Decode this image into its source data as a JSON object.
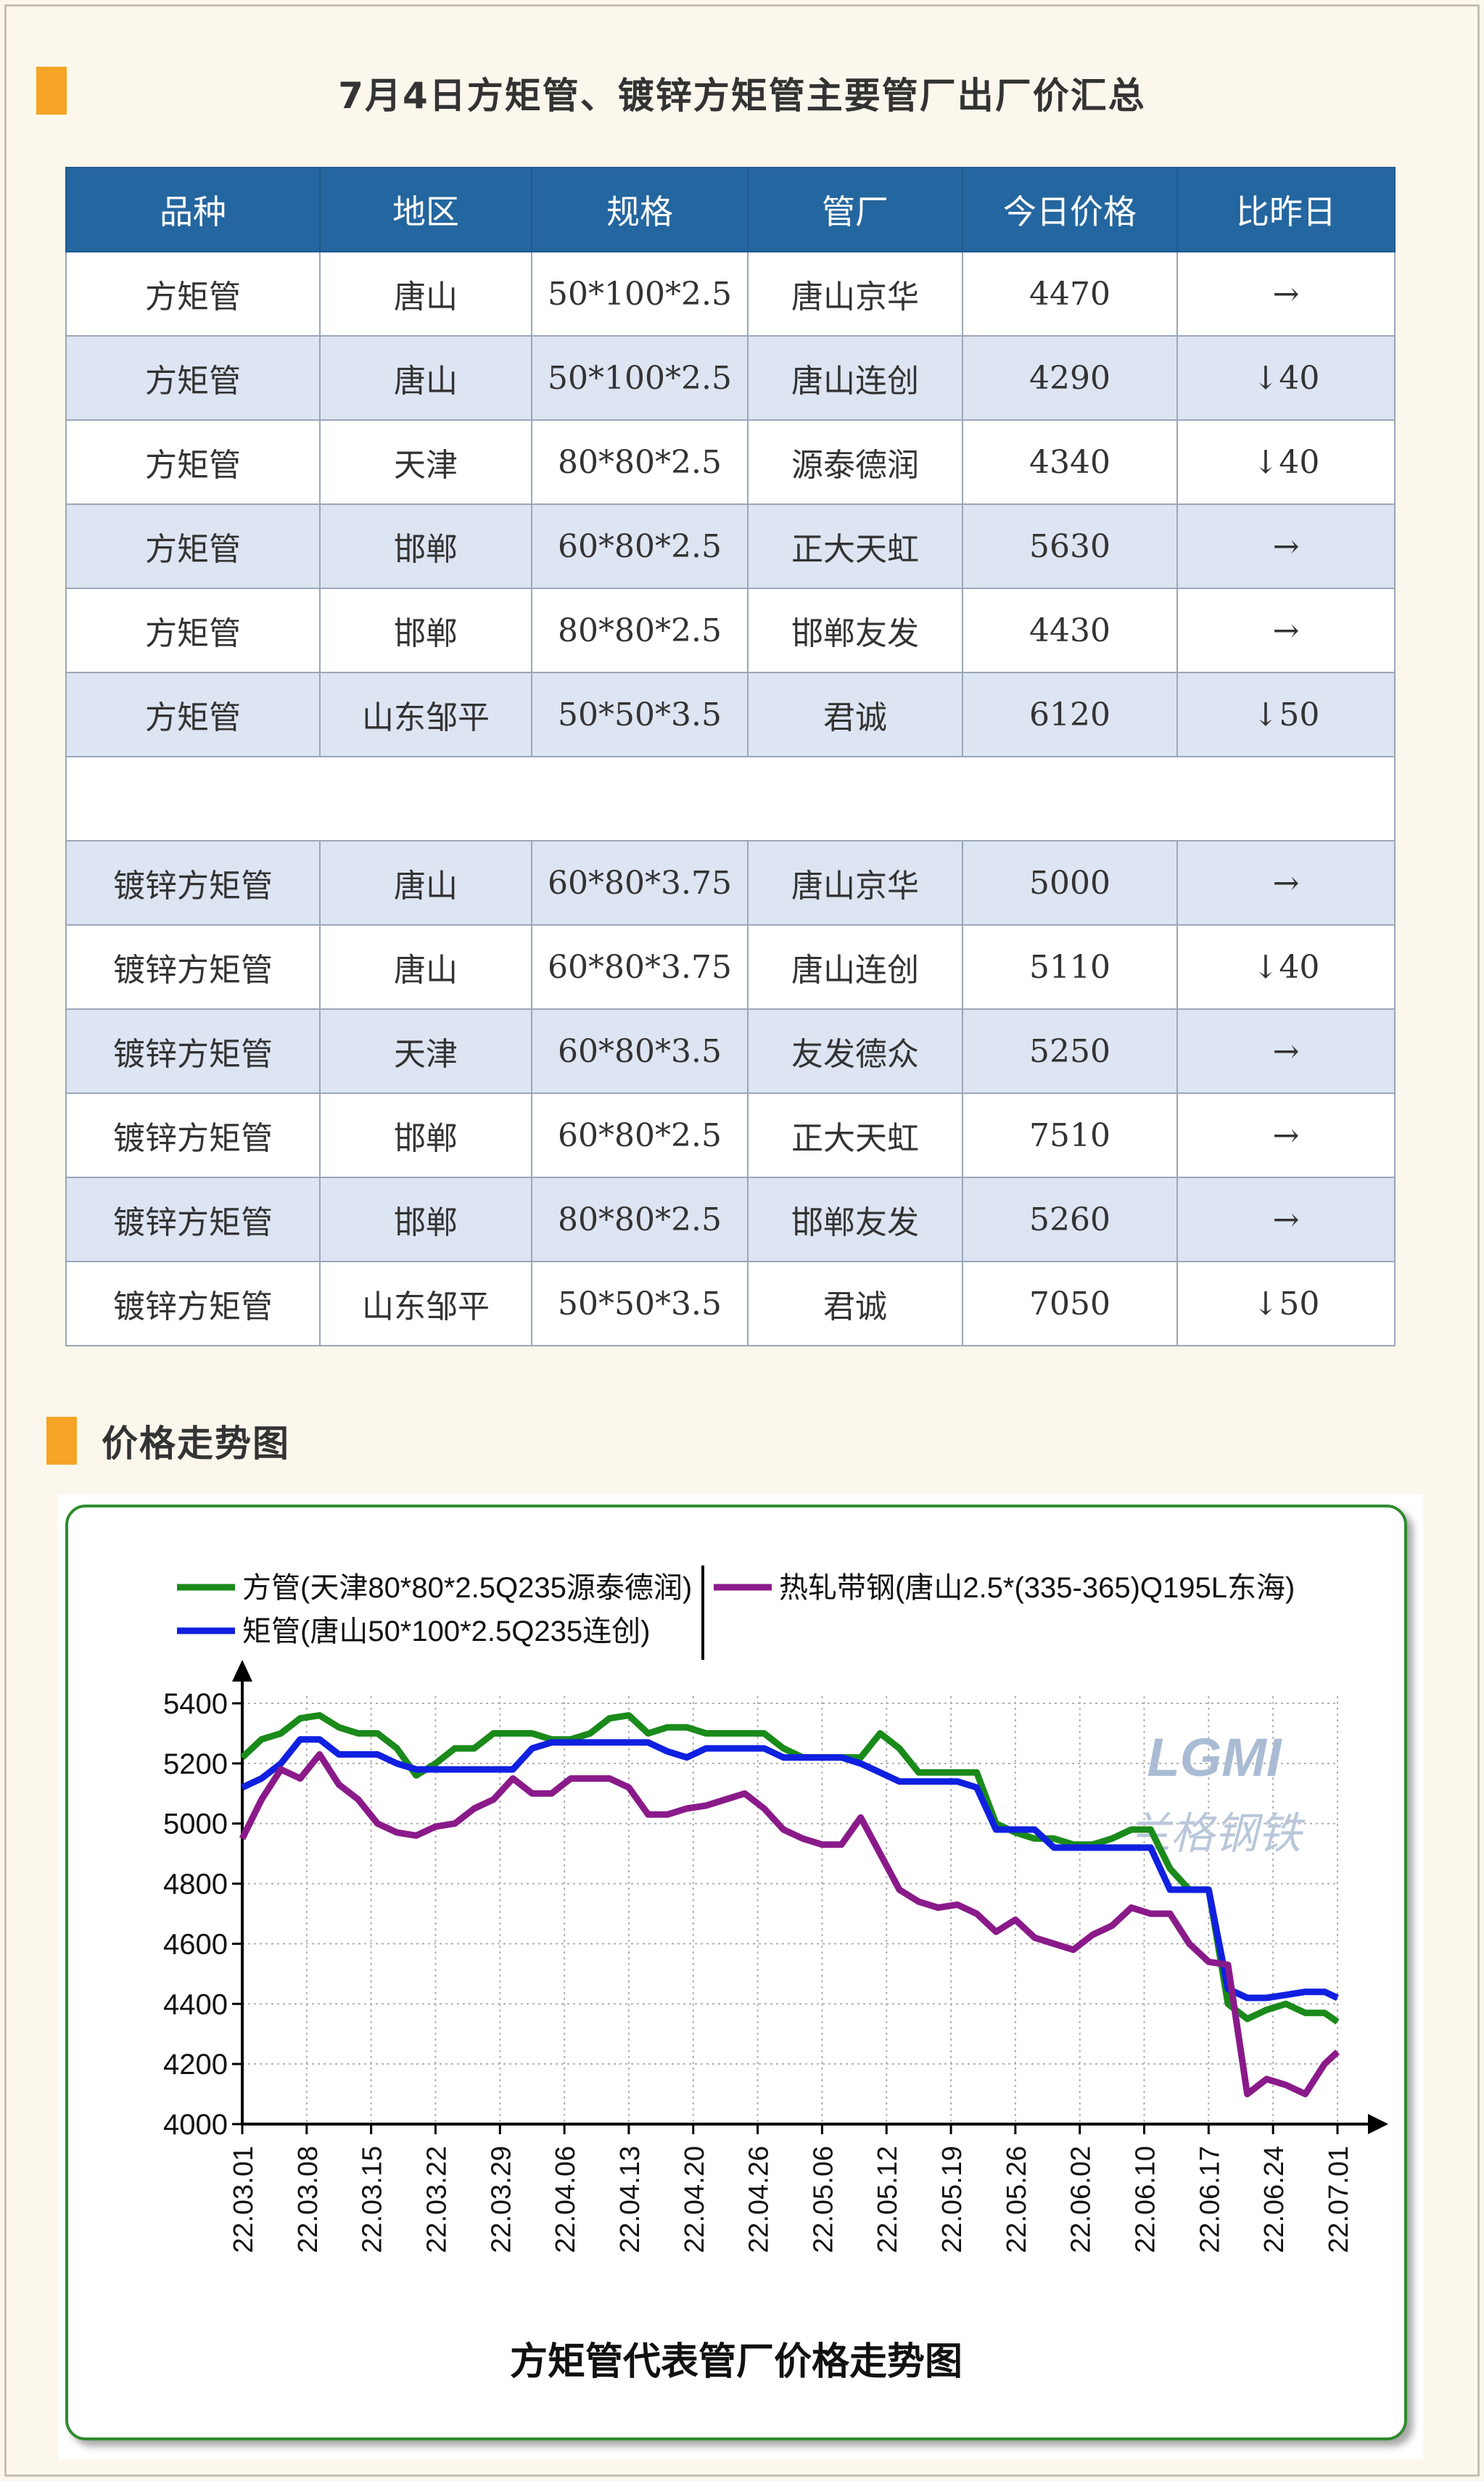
{
  "table": {
    "title": "7月4日方矩管、镀锌方矩管主要管厂出厂价汇总",
    "headers": [
      "品种",
      "地区",
      "规格",
      "管厂",
      "今日价格",
      "比昨日"
    ],
    "rows_group1": [
      {
        "variety": "方矩管",
        "region": "唐山",
        "spec": "50*100*2.5",
        "mill": "唐山京华",
        "price": "4470",
        "change": "→",
        "trend": "flat"
      },
      {
        "variety": "方矩管",
        "region": "唐山",
        "spec": "50*100*2.5",
        "mill": "唐山连创",
        "price": "4290",
        "change": "↓40",
        "trend": "down"
      },
      {
        "variety": "方矩管",
        "region": "天津",
        "spec": "80*80*2.5",
        "mill": "源泰德润",
        "price": "4340",
        "change": "↓40",
        "trend": "down"
      },
      {
        "variety": "方矩管",
        "region": "邯郸",
        "spec": "60*80*2.5",
        "mill": "正大天虹",
        "price": "5630",
        "change": "→",
        "trend": "flat"
      },
      {
        "variety": "方矩管",
        "region": "邯郸",
        "spec": "80*80*2.5",
        "mill": "邯郸友发",
        "price": "4430",
        "change": "→",
        "trend": "flat"
      },
      {
        "variety": "方矩管",
        "region": "山东邹平",
        "spec": "50*50*3.5",
        "mill": "君诚",
        "price": "6120",
        "change": "↓50",
        "trend": "down"
      }
    ],
    "rows_group2": [
      {
        "variety": "镀锌方矩管",
        "region": "唐山",
        "spec": "60*80*3.75",
        "mill": "唐山京华",
        "price": "5000",
        "change": "→",
        "trend": "flat"
      },
      {
        "variety": "镀锌方矩管",
        "region": "唐山",
        "spec": "60*80*3.75",
        "mill": "唐山连创",
        "price": "5110",
        "change": "↓40",
        "trend": "down"
      },
      {
        "variety": "镀锌方矩管",
        "region": "天津",
        "spec": "60*80*3.5",
        "mill": "友发德众",
        "price": "5250",
        "change": "→",
        "trend": "flat"
      },
      {
        "variety": "镀锌方矩管",
        "region": "邯郸",
        "spec": "60*80*2.5",
        "mill": "正大天虹",
        "price": "7510",
        "change": "→",
        "trend": "flat"
      },
      {
        "variety": "镀锌方矩管",
        "region": "邯郸",
        "spec": "80*80*2.5",
        "mill": "邯郸友发",
        "price": "5260",
        "change": "→",
        "trend": "flat"
      },
      {
        "variety": "镀锌方矩管",
        "region": "山东邹平",
        "spec": "50*50*3.5",
        "mill": "君诚",
        "price": "7050",
        "change": "↓50",
        "trend": "down"
      }
    ]
  },
  "trend_section": {
    "title": "价格走势图"
  },
  "colors": {
    "accent": "#f5a425",
    "header_bg": "#24669f",
    "row_alt": "#dde4f2",
    "down": "#1f9a3a",
    "frame": "#2e8b2e"
  },
  "chart_data": {
    "type": "line",
    "title": "方矩管代表管厂价格走势图",
    "watermark": {
      "logo": "LGMI",
      "text": "兰格钢铁"
    },
    "ylim": [
      4000,
      5400
    ],
    "yticks": [
      4000,
      4200,
      4400,
      4600,
      4800,
      5000,
      5200,
      5400
    ],
    "xticks": [
      "22.03.01",
      "22.03.08",
      "22.03.15",
      "22.03.22",
      "22.03.29",
      "22.04.06",
      "22.04.13",
      "22.04.20",
      "22.04.26",
      "22.05.06",
      "22.05.12",
      "22.05.19",
      "22.05.26",
      "22.06.02",
      "22.06.10",
      "22.06.17",
      "22.06.24",
      "22.07.01"
    ],
    "legend_position": "top",
    "grid": true,
    "series": [
      {
        "name": "方管(天津80*80*2.5Q235源泰德润)",
        "color": "#1a8a1a",
        "x": [
          0,
          0.3,
          0.6,
          0.9,
          1.2,
          1.5,
          1.8,
          2.1,
          2.4,
          2.7,
          3.0,
          3.3,
          3.6,
          3.9,
          4.2,
          4.5,
          4.8,
          5.1,
          5.4,
          5.7,
          6.0,
          6.3,
          6.6,
          6.9,
          7.2,
          7.5,
          7.8,
          8.1,
          8.4,
          8.7,
          9.0,
          9.3,
          9.6,
          9.9,
          10.2,
          10.5,
          10.8,
          11.1,
          11.4,
          11.7,
          12.0,
          12.3,
          12.6,
          12.9,
          13.2,
          13.5,
          13.8,
          14.1,
          14.4,
          14.7,
          15.0,
          15.3,
          15.6,
          15.9,
          16.2,
          16.5,
          16.8,
          17.0
        ],
        "values": [
          5220,
          5280,
          5300,
          5350,
          5360,
          5320,
          5300,
          5300,
          5250,
          5160,
          5200,
          5250,
          5250,
          5300,
          5300,
          5300,
          5280,
          5280,
          5300,
          5350,
          5360,
          5300,
          5320,
          5320,
          5300,
          5300,
          5300,
          5300,
          5250,
          5220,
          5220,
          5220,
          5220,
          5300,
          5250,
          5170,
          5170,
          5170,
          5170,
          5000,
          4970,
          4950,
          4950,
          4930,
          4930,
          4950,
          4980,
          4980,
          4850,
          4780,
          4780,
          4400,
          4350,
          4380,
          4400,
          4370,
          4370,
          4340
        ]
      },
      {
        "name": "矩管(唐山50*100*2.5Q235连创)",
        "color": "#1020e0",
        "x": [
          0,
          0.3,
          0.6,
          0.9,
          1.2,
          1.5,
          1.8,
          2.1,
          2.4,
          2.7,
          3.0,
          3.3,
          3.6,
          3.9,
          4.2,
          4.5,
          4.8,
          5.1,
          5.4,
          5.7,
          6.0,
          6.3,
          6.6,
          6.9,
          7.2,
          7.5,
          7.8,
          8.1,
          8.4,
          8.7,
          9.0,
          9.3,
          9.6,
          9.9,
          10.2,
          10.5,
          10.8,
          11.1,
          11.4,
          11.7,
          12.0,
          12.3,
          12.6,
          12.9,
          13.2,
          13.5,
          13.8,
          14.1,
          14.4,
          14.7,
          15.0,
          15.3,
          15.6,
          15.9,
          16.2,
          16.5,
          16.8,
          17.0
        ],
        "values": [
          5120,
          5150,
          5200,
          5280,
          5280,
          5230,
          5230,
          5230,
          5200,
          5180,
          5180,
          5180,
          5180,
          5180,
          5180,
          5250,
          5270,
          5270,
          5270,
          5270,
          5270,
          5270,
          5240,
          5220,
          5250,
          5250,
          5250,
          5250,
          5220,
          5220,
          5220,
          5220,
          5200,
          5170,
          5140,
          5140,
          5140,
          5140,
          5120,
          4980,
          4980,
          4980,
          4920,
          4920,
          4920,
          4920,
          4920,
          4920,
          4780,
          4780,
          4780,
          4450,
          4420,
          4420,
          4430,
          4440,
          4440,
          4420
        ]
      },
      {
        "name": "热轧带钢(唐山2.5*(335-365)Q195L东海)",
        "color": "#8a1a8a",
        "x": [
          0,
          0.3,
          0.6,
          0.9,
          1.2,
          1.5,
          1.8,
          2.1,
          2.4,
          2.7,
          3.0,
          3.3,
          3.6,
          3.9,
          4.2,
          4.5,
          4.8,
          5.1,
          5.4,
          5.7,
          6.0,
          6.3,
          6.6,
          6.9,
          7.2,
          7.5,
          7.8,
          8.1,
          8.4,
          8.7,
          9.0,
          9.3,
          9.6,
          9.9,
          10.2,
          10.5,
          10.8,
          11.1,
          11.4,
          11.7,
          12.0,
          12.3,
          12.6,
          12.9,
          13.2,
          13.5,
          13.8,
          14.1,
          14.4,
          14.7,
          15.0,
          15.3,
          15.6,
          15.9,
          16.2,
          16.5,
          16.8,
          17.0
        ],
        "values": [
          4950,
          5080,
          5180,
          5150,
          5230,
          5130,
          5080,
          5000,
          4970,
          4960,
          4990,
          5000,
          5050,
          5080,
          5150,
          5100,
          5100,
          5150,
          5150,
          5150,
          5120,
          5030,
          5030,
          5050,
          5060,
          5080,
          5100,
          5050,
          4980,
          4950,
          4930,
          4930,
          5020,
          4900,
          4780,
          4740,
          4720,
          4730,
          4700,
          4640,
          4680,
          4620,
          4600,
          4580,
          4630,
          4660,
          4720,
          4700,
          4700,
          4600,
          4540,
          4530,
          4100,
          4150,
          4130,
          4100,
          4200,
          4240
        ]
      }
    ]
  }
}
